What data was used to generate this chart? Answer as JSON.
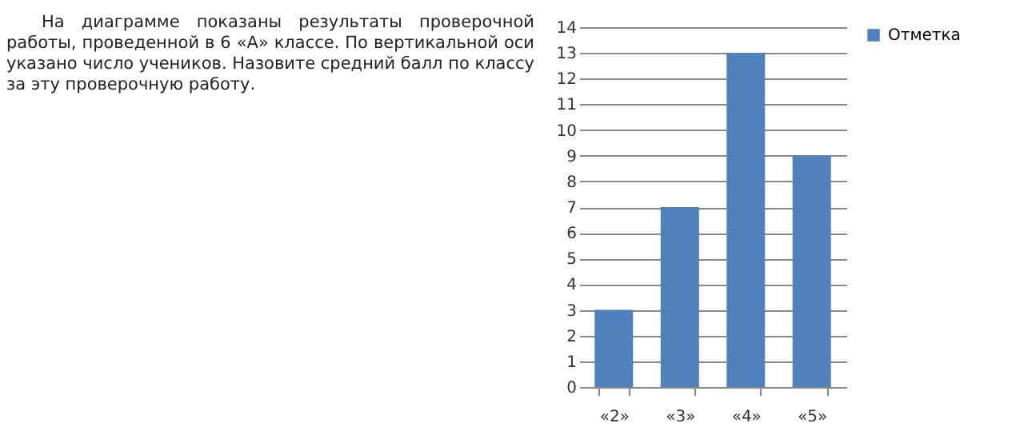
{
  "chart_data": {
    "type": "bar",
    "annotations": [
      "На диаграмме показаны результаты проверочной работы, проведенной в 6 «А» классе. По вертикальной оси указано число учеников. Назовите средний балл по классу за эту проверочную работу."
    ],
    "categories": [
      "«2»",
      "«3»",
      "«4»",
      "«5»"
    ],
    "series": [
      {
        "name": "Отметка",
        "color": "#4f81bd",
        "values": [
          3,
          7,
          13,
          9
        ]
      }
    ],
    "ylim": [
      0,
      14
    ],
    "yticks": [
      0,
      1,
      2,
      3,
      4,
      5,
      6,
      7,
      8,
      9,
      10,
      11,
      12,
      13,
      14
    ],
    "grid": "y",
    "legend": "right"
  }
}
